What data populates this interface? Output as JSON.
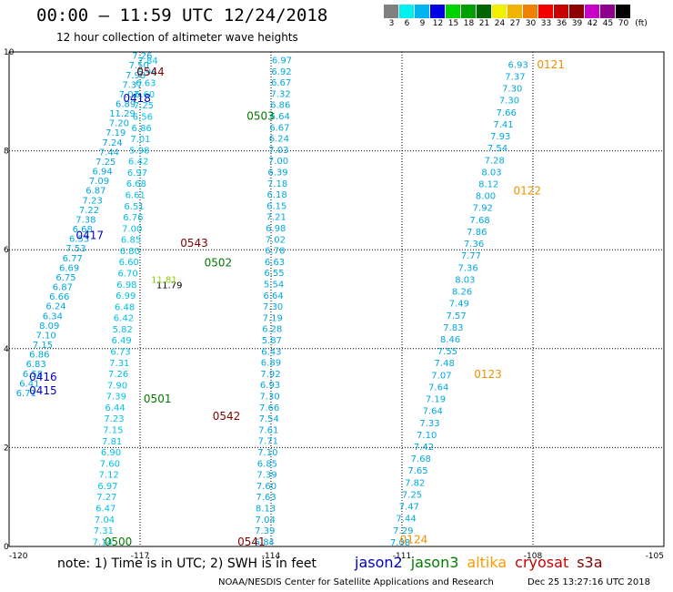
{
  "header": {
    "title": "00:00 – 11:59 UTC 12/24/2018",
    "subtitle": "12 hour collection of altimeter wave heights"
  },
  "color_scale": {
    "unit": "(ft)",
    "steps": [
      {
        "label": "3",
        "color": "#808080"
      },
      {
        "label": "6",
        "color": "#00f0f0"
      },
      {
        "label": "9",
        "color": "#00b4f0"
      },
      {
        "label": "12",
        "color": "#0000e6"
      },
      {
        "label": "15",
        "color": "#00d200"
      },
      {
        "label": "18",
        "color": "#00a000"
      },
      {
        "label": "21",
        "color": "#006400"
      },
      {
        "label": "24",
        "color": "#f0f000"
      },
      {
        "label": "27",
        "color": "#f0b400"
      },
      {
        "label": "30",
        "color": "#f08200"
      },
      {
        "label": "33",
        "color": "#f00000"
      },
      {
        "label": "36",
        "color": "#c80000"
      },
      {
        "label": "39",
        "color": "#8c0000"
      },
      {
        "label": "42",
        "color": "#c800c8"
      },
      {
        "label": "45",
        "color": "#8c008c"
      },
      {
        "label": "70",
        "color": "#000000"
      }
    ]
  },
  "map": {
    "lon_range": [
      -120,
      -105
    ],
    "lat_range": [
      0,
      10
    ],
    "x_ticks": [
      "-120",
      "-117",
      "-114",
      "-111",
      "-108",
      "-105"
    ],
    "y_ticks": [
      "0",
      "2",
      "4",
      "6",
      "8",
      "10"
    ]
  },
  "satellites": [
    {
      "name": "jason2",
      "color": "#0000cc"
    },
    {
      "name": "jason3",
      "color": "#008000"
    },
    {
      "name": "altika",
      "color": "#ff9900"
    },
    {
      "name": "cryosat",
      "color": "#cc0000"
    },
    {
      "name": "s3a",
      "color": "#800000"
    }
  ],
  "pass_colors": {
    "jason2": "#0000cc",
    "jason3": "#007a00",
    "altika": "#f09000",
    "s3a": "#800000"
  },
  "passes": [
    {
      "label": "0544",
      "sat": "s3a",
      "lon": -116.76,
      "lat": 9.52
    },
    {
      "label": "0418",
      "sat": "jason2",
      "lon": -117.07,
      "lat": 8.99
    },
    {
      "label": "0417",
      "sat": "jason2",
      "lon": -118.15,
      "lat": 6.22
    },
    {
      "label": "0416",
      "sat": "jason2",
      "lon": -119.22,
      "lat": 3.35
    },
    {
      "label": "0415",
      "sat": "jason2",
      "lon": -119.22,
      "lat": 3.08
    },
    {
      "label": "0503",
      "sat": "jason3",
      "lon": -114.24,
      "lat": 8.63
    },
    {
      "label": "0543",
      "sat": "s3a",
      "lon": -115.76,
      "lat": 6.06
    },
    {
      "label": "0502",
      "sat": "jason3",
      "lon": -115.21,
      "lat": 5.66
    },
    {
      "label": "0501",
      "sat": "jason3",
      "lon": -116.6,
      "lat": 2.91
    },
    {
      "label": "0542",
      "sat": "s3a",
      "lon": -115.02,
      "lat": 2.56
    },
    {
      "label": "0541",
      "sat": "s3a",
      "lon": -114.45,
      "lat": 0.02
    },
    {
      "label": "0500",
      "sat": "jason3",
      "lon": -117.5,
      "lat": 0.02
    },
    {
      "label": "0121",
      "sat": "altika",
      "lon": -107.59,
      "lat": 9.67
    },
    {
      "label": "0122",
      "sat": "altika",
      "lon": -108.13,
      "lat": 7.12
    },
    {
      "label": "0123",
      "sat": "altika",
      "lon": -109.03,
      "lat": 3.41
    },
    {
      "label": "0124",
      "sat": "altika",
      "lon": -110.73,
      "lat": 0.06
    }
  ],
  "tracks": [
    {
      "name": "track-a",
      "color": "#00a8e0",
      "start": [
        -119.61,
        3.04
      ],
      "end": [
        -116.95,
        9.86
      ],
      "values": [
        "6.71",
        "6.41",
        "6.58",
        "6.83",
        "6.86",
        "7.15",
        "7.10",
        "8.09",
        "6.34",
        "6.24",
        "6.66",
        "6.87",
        "6.75",
        "6.69",
        "6.77",
        "7.53",
        "6.53",
        "6.68",
        "7.38",
        "7.22",
        "7.23",
        "6.87",
        "7.09",
        "6.94",
        "7.25",
        "7.44",
        "7.24",
        "7.19",
        "7.20",
        "11.29",
        "6.89",
        "7.07",
        "7.37",
        "7.98",
        "7.50",
        "7.26"
      ]
    },
    {
      "name": "track-b",
      "color": "#00c0e8",
      "start": [
        -117.86,
        0.03
      ],
      "end": [
        -116.82,
        9.76
      ],
      "values": [
        "7.14",
        "7.31",
        "7.04",
        "6.47",
        "7.27",
        "6.97",
        "7.12",
        "7.60",
        "6.90",
        "7.81",
        "7.15",
        "7.23",
        "6.44",
        "7.39",
        "7.90",
        "7.26",
        "7.31",
        "6.73",
        "6.49",
        "5.82",
        "6.42",
        "6.48",
        "6.99",
        "6.98",
        "6.70",
        "6.60",
        "6.80",
        "6.85",
        "7.00",
        "6.76",
        "6.51",
        "6.61",
        "6.68",
        "6.97",
        "6.42",
        "5.98",
        "7.01",
        "6.86",
        "6.56",
        "7.25",
        "6.60",
        "6.63",
        "6.96",
        "7.84"
      ]
    },
    {
      "name": "track-c",
      "color": "#00a8e0",
      "start": [
        -114.15,
        0.03
      ],
      "end": [
        -113.75,
        9.77
      ],
      "values": [
        "6.84",
        "7.39",
        "7.04",
        "8.13",
        "7.63",
        "7.60",
        "7.39",
        "6.85",
        "7.10",
        "7.71",
        "7.61",
        "7.54",
        "7.66",
        "7.30",
        "6.93",
        "7.92",
        "6.89",
        "6.43",
        "5.87",
        "6.28",
        "7.19",
        "7.30",
        "6.64",
        "5.54",
        "6.55",
        "6.63",
        "6.78",
        "7.02",
        "6.98",
        "7.21",
        "6.15",
        "6.18",
        "7.18",
        "6.39",
        "7.00",
        "7.03",
        "6.24",
        "6.67",
        "6.64",
        "6.86",
        "7.32",
        "6.67",
        "6.92",
        "6.97"
      ]
    },
    {
      "name": "track-d",
      "color": "#00a8e0",
      "start": [
        -111.04,
        0.02
      ],
      "end": [
        -108.34,
        9.68
      ],
      "values": [
        "7.08",
        "7.29",
        "7.44",
        "7.47",
        "7.25",
        "7.82",
        "7.65",
        "7.68",
        "7.42",
        "7.10",
        "7.33",
        "7.64",
        "7.19",
        "7.64",
        "7.07",
        "7.48",
        "7.55",
        "8.46",
        "7.83",
        "7.57",
        "7.49",
        "8.26",
        "8.03",
        "7.36",
        "7.77",
        "7.36",
        "7.86",
        "7.68",
        "7.92",
        "8.00",
        "8.12",
        "8.03",
        "7.28",
        "7.54",
        "7.93",
        "7.41",
        "7.66",
        "7.30",
        "7.30",
        "7.37",
        "6.93"
      ]
    }
  ],
  "highlights": [
    {
      "text": "11.79",
      "color": "#000000",
      "lon": -116.33,
      "lat": 5.22
    },
    {
      "text": "11.81",
      "color": "#88d000",
      "lon": -116.45,
      "lat": 5.33
    }
  ],
  "footer": {
    "note": "note:  1) Time is in UTC;  2) SWH is in feet",
    "credit": "NOAA/NESDIS Center for Satellite Applications and Research",
    "timestamp": "Dec 25 13:27:16 UTC 2018"
  }
}
